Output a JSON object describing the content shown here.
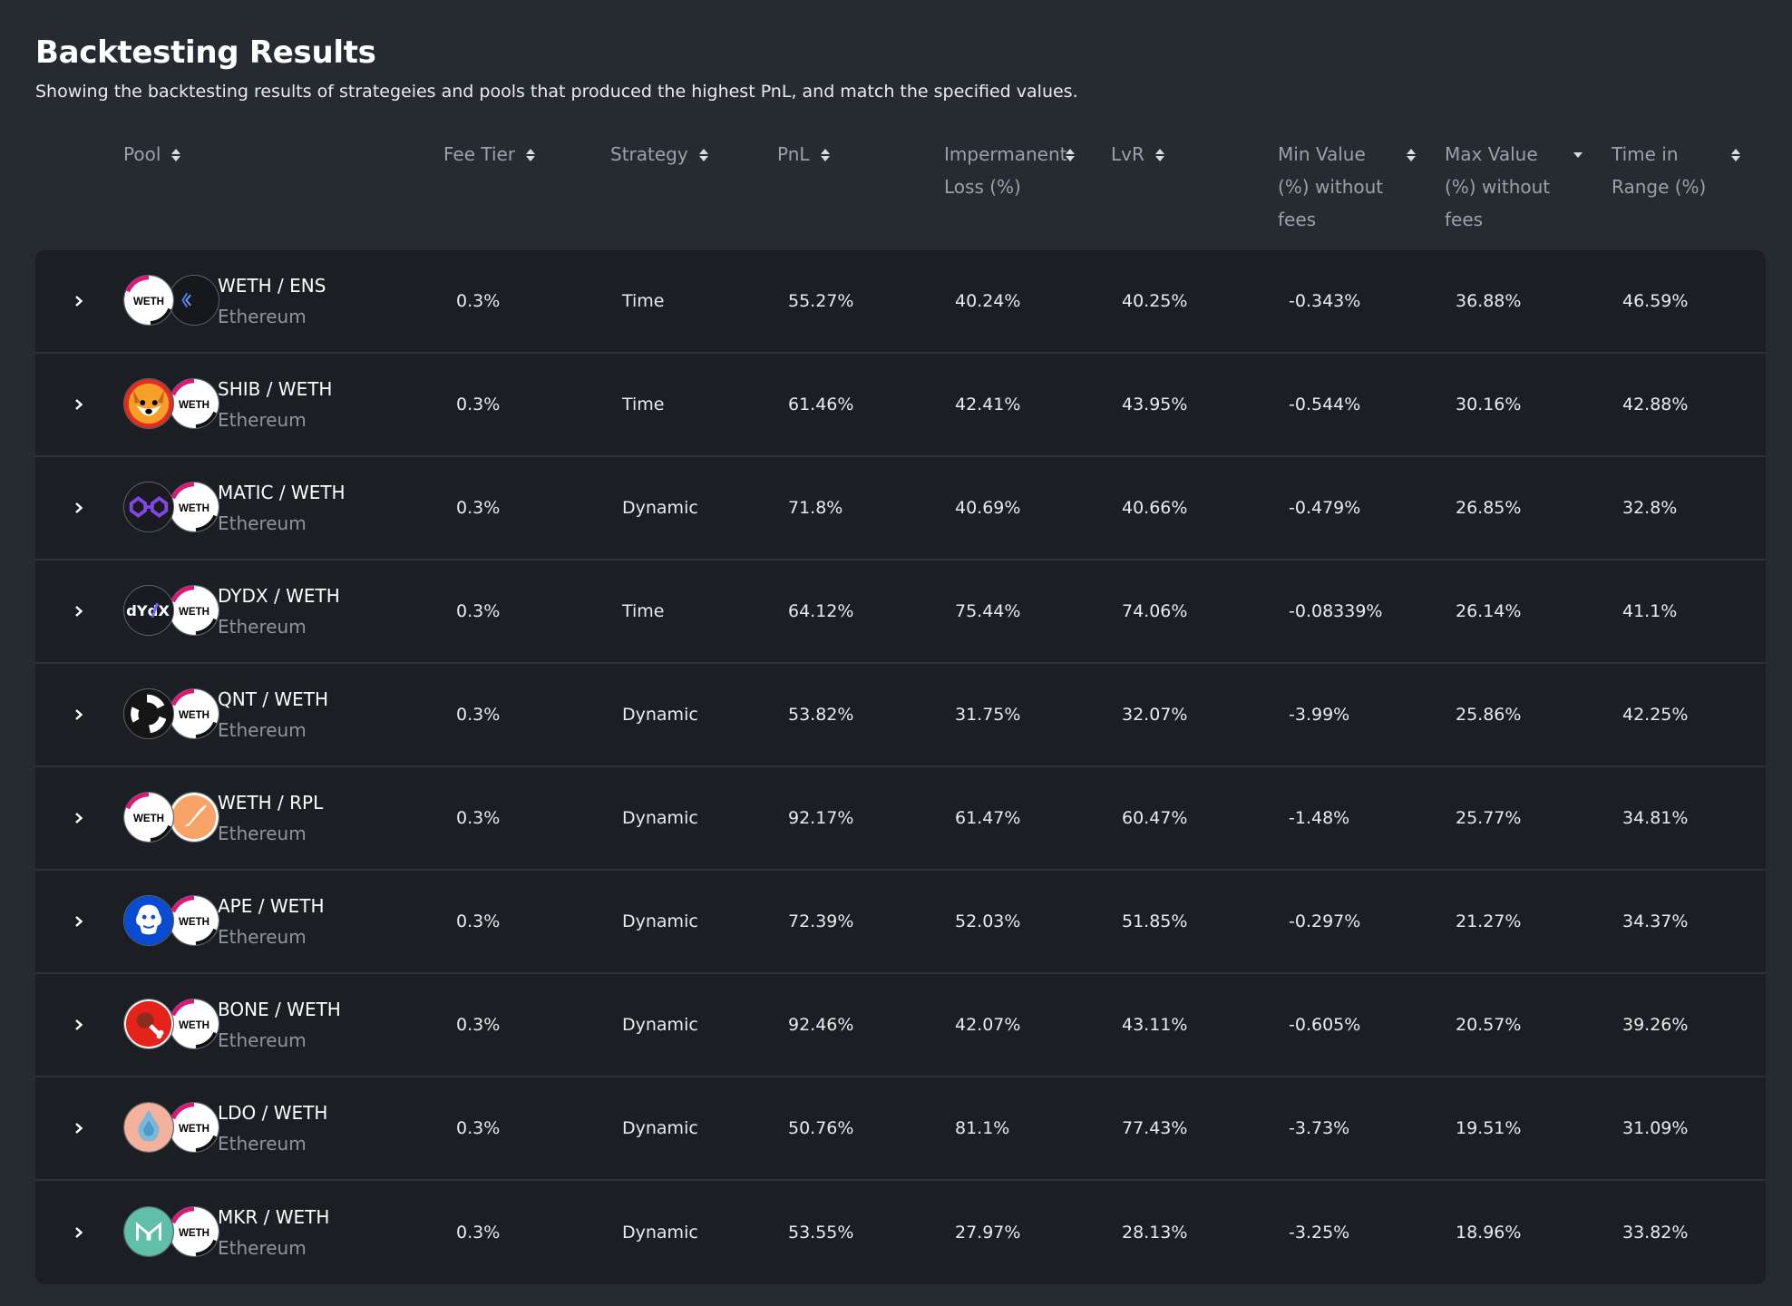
{
  "header": {
    "title": "Backtesting Results",
    "subtitle": "Showing the backtesting results of strategeies and pools that produced the highest PnL, and match the specified values."
  },
  "columns": {
    "pool": "Pool",
    "fee_tier": "Fee Tier",
    "strategy": "Strategy",
    "pnl": "PnL",
    "impermanent_loss": "Impermanent Loss (%)",
    "lvr": "LvR",
    "min_value": "Min Value (%) without fees",
    "max_value": "Max Value (%) without fees",
    "time_in_range": "Time in Range (%)"
  },
  "sorted_column": "max_value",
  "sort_direction": "descending",
  "rows": [
    {
      "pair": "WETH / ENS",
      "chain": "Ethereum",
      "token_a": "WETH",
      "token_b": "ENS",
      "icon_a": "weth-icon",
      "icon_b": "ens-icon",
      "fee": "0.3%",
      "strategy": "Time",
      "pnl": "55.27%",
      "il": "40.24%",
      "lvr": "40.25%",
      "min": "-0.343%",
      "max": "36.88%",
      "tir": "46.59%"
    },
    {
      "pair": "SHIB / WETH",
      "chain": "Ethereum",
      "token_a": "SHIB",
      "token_b": "WETH",
      "icon_a": "shib-icon",
      "icon_b": "weth-icon",
      "fee": "0.3%",
      "strategy": "Time",
      "pnl": "61.46%",
      "il": "42.41%",
      "lvr": "43.95%",
      "min": "-0.544%",
      "max": "30.16%",
      "tir": "42.88%"
    },
    {
      "pair": "MATIC / WETH",
      "chain": "Ethereum",
      "token_a": "MATIC",
      "token_b": "WETH",
      "icon_a": "matic-icon",
      "icon_b": "weth-icon",
      "fee": "0.3%",
      "strategy": "Dynamic",
      "pnl": "71.8%",
      "il": "40.69%",
      "lvr": "40.66%",
      "min": "-0.479%",
      "max": "26.85%",
      "tir": "32.8%"
    },
    {
      "pair": "DYDX / WETH",
      "chain": "Ethereum",
      "token_a": "DYDX",
      "token_b": "WETH",
      "icon_a": "dydx-icon",
      "icon_b": "weth-icon",
      "fee": "0.3%",
      "strategy": "Time",
      "pnl": "64.12%",
      "il": "75.44%",
      "lvr": "74.06%",
      "min": "-0.08339%",
      "max": "26.14%",
      "tir": "41.1%"
    },
    {
      "pair": "QNT / WETH",
      "chain": "Ethereum",
      "token_a": "QNT",
      "token_b": "WETH",
      "icon_a": "qnt-icon",
      "icon_b": "weth-icon",
      "fee": "0.3%",
      "strategy": "Dynamic",
      "pnl": "53.82%",
      "il": "31.75%",
      "lvr": "32.07%",
      "min": "-3.99%",
      "max": "25.86%",
      "tir": "42.25%"
    },
    {
      "pair": "WETH / RPL",
      "chain": "Ethereum",
      "token_a": "WETH",
      "token_b": "RPL",
      "icon_a": "weth-icon",
      "icon_b": "rpl-icon",
      "fee": "0.3%",
      "strategy": "Dynamic",
      "pnl": "92.17%",
      "il": "61.47%",
      "lvr": "60.47%",
      "min": "-1.48%",
      "max": "25.77%",
      "tir": "34.81%"
    },
    {
      "pair": "APE / WETH",
      "chain": "Ethereum",
      "token_a": "APE",
      "token_b": "WETH",
      "icon_a": "ape-icon",
      "icon_b": "weth-icon",
      "fee": "0.3%",
      "strategy": "Dynamic",
      "pnl": "72.39%",
      "il": "52.03%",
      "lvr": "51.85%",
      "min": "-0.297%",
      "max": "21.27%",
      "tir": "34.37%"
    },
    {
      "pair": "BONE / WETH",
      "chain": "Ethereum",
      "token_a": "BONE",
      "token_b": "WETH",
      "icon_a": "bone-icon",
      "icon_b": "weth-icon",
      "fee": "0.3%",
      "strategy": "Dynamic",
      "pnl": "92.46%",
      "il": "42.07%",
      "lvr": "43.11%",
      "min": "-0.605%",
      "max": "20.57%",
      "tir": "39.26%"
    },
    {
      "pair": "LDO / WETH",
      "chain": "Ethereum",
      "token_a": "LDO",
      "token_b": "WETH",
      "icon_a": "ldo-icon",
      "icon_b": "weth-icon",
      "fee": "0.3%",
      "strategy": "Dynamic",
      "pnl": "50.76%",
      "il": "81.1%",
      "lvr": "77.43%",
      "min": "-3.73%",
      "max": "19.51%",
      "tir": "31.09%"
    },
    {
      "pair": "MKR / WETH",
      "chain": "Ethereum",
      "token_a": "MKR",
      "token_b": "WETH",
      "icon_a": "mkr-icon",
      "icon_b": "weth-icon",
      "fee": "0.3%",
      "strategy": "Dynamic",
      "pnl": "53.55%",
      "il": "27.97%",
      "lvr": "28.13%",
      "min": "-3.25%",
      "max": "18.96%",
      "tir": "33.82%"
    }
  ],
  "colors": {
    "background": "#262a31",
    "table_bg": "#1b1e22",
    "header_text": "#9aa1ab",
    "secondary_text": "#8e959f",
    "weth_ring": "#e3137a"
  }
}
